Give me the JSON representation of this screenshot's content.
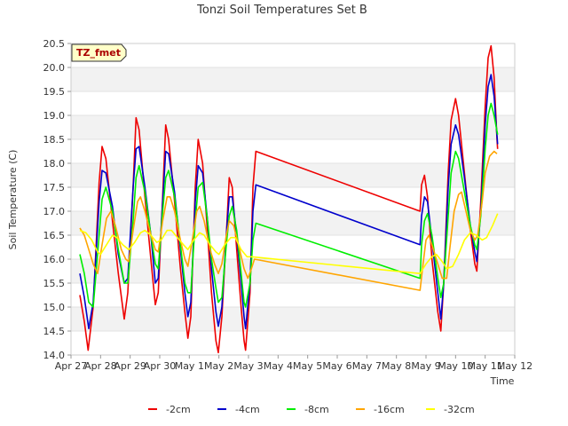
{
  "chart_data": {
    "type": "line",
    "title": "Tonzi Soil Temperatures Set B",
    "xlabel": "Time",
    "ylabel": "Soil Temperature (C)",
    "badge": "TZ_fmet",
    "x_ticks": [
      "Apr 27",
      "Apr 28",
      "Apr 29",
      "Apr 30",
      "May 1",
      "May 2",
      "May 3",
      "May 4",
      "May 5",
      "May 6",
      "May 7",
      "May 8",
      "May 9",
      "May 10",
      "May 11",
      "May 12"
    ],
    "xlim": [
      0,
      15
    ],
    "y_ticks": [
      "14.0",
      "14.5",
      "15.0",
      "15.5",
      "16.0",
      "16.5",
      "17.0",
      "17.5",
      "18.0",
      "18.5",
      "19.0",
      "19.5",
      "20.0",
      "20.5"
    ],
    "ylim": [
      14.0,
      20.5
    ],
    "grid": true,
    "legend_position": "bottom",
    "series": [
      {
        "name": "-2cm",
        "color": "#ee0000",
        "points": [
          [
            0.3,
            15.25
          ],
          [
            0.45,
            14.7
          ],
          [
            0.58,
            14.1
          ],
          [
            0.75,
            15.0
          ],
          [
            0.95,
            17.6
          ],
          [
            1.05,
            18.35
          ],
          [
            1.18,
            18.1
          ],
          [
            1.4,
            16.8
          ],
          [
            1.6,
            15.7
          ],
          [
            1.8,
            14.75
          ],
          [
            1.92,
            15.3
          ],
          [
            2.1,
            17.5
          ],
          [
            2.2,
            18.95
          ],
          [
            2.3,
            18.7
          ],
          [
            2.5,
            17.3
          ],
          [
            2.7,
            16.0
          ],
          [
            2.85,
            15.05
          ],
          [
            2.95,
            15.3
          ],
          [
            3.1,
            17.3
          ],
          [
            3.2,
            18.8
          ],
          [
            3.3,
            18.5
          ],
          [
            3.5,
            17.2
          ],
          [
            3.7,
            15.8
          ],
          [
            3.85,
            14.9
          ],
          [
            3.95,
            14.35
          ],
          [
            4.05,
            14.8
          ],
          [
            4.2,
            17.5
          ],
          [
            4.3,
            18.5
          ],
          [
            4.45,
            18.0
          ],
          [
            4.6,
            16.7
          ],
          [
            4.75,
            15.3
          ],
          [
            4.9,
            14.3
          ],
          [
            4.98,
            14.05
          ],
          [
            5.1,
            14.8
          ],
          [
            5.25,
            16.5
          ],
          [
            5.35,
            17.7
          ],
          [
            5.45,
            17.5
          ],
          [
            5.6,
            16.2
          ],
          [
            5.75,
            15.0
          ],
          [
            5.85,
            14.3
          ],
          [
            5.9,
            14.1
          ],
          [
            6.05,
            15.3
          ],
          [
            6.15,
            17.5
          ],
          [
            6.25,
            18.25
          ],
          [
            11.8,
            17.0
          ],
          [
            11.85,
            17.55
          ],
          [
            11.95,
            17.75
          ],
          [
            12.05,
            17.3
          ],
          [
            12.2,
            16.0
          ],
          [
            12.4,
            14.9
          ],
          [
            12.5,
            14.5
          ],
          [
            12.6,
            15.5
          ],
          [
            12.75,
            17.8
          ],
          [
            12.85,
            18.9
          ],
          [
            13.0,
            19.35
          ],
          [
            13.1,
            19.0
          ],
          [
            13.3,
            17.8
          ],
          [
            13.5,
            16.6
          ],
          [
            13.65,
            15.9
          ],
          [
            13.72,
            15.75
          ],
          [
            13.85,
            17.2
          ],
          [
            14.0,
            19.2
          ],
          [
            14.1,
            20.2
          ],
          [
            14.2,
            20.45
          ],
          [
            14.3,
            19.8
          ],
          [
            14.4,
            18.5
          ],
          [
            14.42,
            18.3
          ]
        ]
      },
      {
        "name": "-4cm",
        "color": "#0000cc",
        "points": [
          [
            0.3,
            15.7
          ],
          [
            0.45,
            15.2
          ],
          [
            0.6,
            14.55
          ],
          [
            0.75,
            15.1
          ],
          [
            0.95,
            17.2
          ],
          [
            1.05,
            17.85
          ],
          [
            1.18,
            17.8
          ],
          [
            1.4,
            17.1
          ],
          [
            1.6,
            16.1
          ],
          [
            1.8,
            15.5
          ],
          [
            1.92,
            15.6
          ],
          [
            2.1,
            17.5
          ],
          [
            2.2,
            18.3
          ],
          [
            2.3,
            18.35
          ],
          [
            2.5,
            17.5
          ],
          [
            2.7,
            16.5
          ],
          [
            2.85,
            15.5
          ],
          [
            2.95,
            15.6
          ],
          [
            3.1,
            17.2
          ],
          [
            3.2,
            18.25
          ],
          [
            3.3,
            18.2
          ],
          [
            3.5,
            17.4
          ],
          [
            3.7,
            16.2
          ],
          [
            3.85,
            15.3
          ],
          [
            3.95,
            14.8
          ],
          [
            4.05,
            15.1
          ],
          [
            4.2,
            17.2
          ],
          [
            4.3,
            17.95
          ],
          [
            4.45,
            17.8
          ],
          [
            4.6,
            16.9
          ],
          [
            4.75,
            15.8
          ],
          [
            4.9,
            14.9
          ],
          [
            4.98,
            14.6
          ],
          [
            5.1,
            15.0
          ],
          [
            5.25,
            16.5
          ],
          [
            5.35,
            17.3
          ],
          [
            5.45,
            17.3
          ],
          [
            5.6,
            16.5
          ],
          [
            5.75,
            15.5
          ],
          [
            5.85,
            14.8
          ],
          [
            5.9,
            14.55
          ],
          [
            6.05,
            15.5
          ],
          [
            6.15,
            17.0
          ],
          [
            6.25,
            17.55
          ],
          [
            11.8,
            16.3
          ],
          [
            11.85,
            16.9
          ],
          [
            11.95,
            17.3
          ],
          [
            12.05,
            17.2
          ],
          [
            12.2,
            16.4
          ],
          [
            12.4,
            15.3
          ],
          [
            12.5,
            14.75
          ],
          [
            12.6,
            15.5
          ],
          [
            12.75,
            17.5
          ],
          [
            12.85,
            18.4
          ],
          [
            13.0,
            18.8
          ],
          [
            13.1,
            18.6
          ],
          [
            13.3,
            17.7
          ],
          [
            13.5,
            16.7
          ],
          [
            13.65,
            16.15
          ],
          [
            13.72,
            15.95
          ],
          [
            13.85,
            17.0
          ],
          [
            14.0,
            18.8
          ],
          [
            14.1,
            19.6
          ],
          [
            14.2,
            19.85
          ],
          [
            14.3,
            19.4
          ],
          [
            14.42,
            18.4
          ]
        ]
      },
      {
        "name": "-8cm",
        "color": "#00ee00",
        "points": [
          [
            0.3,
            16.1
          ],
          [
            0.45,
            15.7
          ],
          [
            0.6,
            15.1
          ],
          [
            0.75,
            15.0
          ],
          [
            0.95,
            16.5
          ],
          [
            1.05,
            17.25
          ],
          [
            1.18,
            17.5
          ],
          [
            1.4,
            17.0
          ],
          [
            1.6,
            16.2
          ],
          [
            1.8,
            15.5
          ],
          [
            1.92,
            15.5
          ],
          [
            2.1,
            16.8
          ],
          [
            2.2,
            17.7
          ],
          [
            2.3,
            17.95
          ],
          [
            2.5,
            17.4
          ],
          [
            2.7,
            16.5
          ],
          [
            2.85,
            15.9
          ],
          [
            2.95,
            15.8
          ],
          [
            3.1,
            17.0
          ],
          [
            3.2,
            17.7
          ],
          [
            3.3,
            17.85
          ],
          [
            3.5,
            17.3
          ],
          [
            3.7,
            16.3
          ],
          [
            3.85,
            15.5
          ],
          [
            3.95,
            15.3
          ],
          [
            4.05,
            15.3
          ],
          [
            4.2,
            16.8
          ],
          [
            4.3,
            17.5
          ],
          [
            4.45,
            17.6
          ],
          [
            4.6,
            16.9
          ],
          [
            4.75,
            16.0
          ],
          [
            4.9,
            15.4
          ],
          [
            4.98,
            15.1
          ],
          [
            5.1,
            15.2
          ],
          [
            5.25,
            16.3
          ],
          [
            5.35,
            16.9
          ],
          [
            5.45,
            17.1
          ],
          [
            5.6,
            16.6
          ],
          [
            5.75,
            15.7
          ],
          [
            5.85,
            15.1
          ],
          [
            5.9,
            15.0
          ],
          [
            6.05,
            15.5
          ],
          [
            6.15,
            16.4
          ],
          [
            6.25,
            16.75
          ],
          [
            11.8,
            15.6
          ],
          [
            11.85,
            16.3
          ],
          [
            11.95,
            16.8
          ],
          [
            12.05,
            16.95
          ],
          [
            12.2,
            16.5
          ],
          [
            12.4,
            15.6
          ],
          [
            12.5,
            15.2
          ],
          [
            12.6,
            15.5
          ],
          [
            12.75,
            16.9
          ],
          [
            12.85,
            17.8
          ],
          [
            13.0,
            18.25
          ],
          [
            13.1,
            18.1
          ],
          [
            13.3,
            17.4
          ],
          [
            13.5,
            16.7
          ],
          [
            13.65,
            16.3
          ],
          [
            13.72,
            16.2
          ],
          [
            13.85,
            16.9
          ],
          [
            14.0,
            18.3
          ],
          [
            14.1,
            19.0
          ],
          [
            14.2,
            19.25
          ],
          [
            14.3,
            19.0
          ],
          [
            14.42,
            18.6
          ]
        ]
      },
      {
        "name": "-16cm",
        "color": "#ffa500",
        "points": [
          [
            0.3,
            16.65
          ],
          [
            0.45,
            16.5
          ],
          [
            0.6,
            16.2
          ],
          [
            0.75,
            15.9
          ],
          [
            0.9,
            15.7
          ],
          [
            1.05,
            16.3
          ],
          [
            1.2,
            16.85
          ],
          [
            1.35,
            17.0
          ],
          [
            1.5,
            16.7
          ],
          [
            1.7,
            16.2
          ],
          [
            1.85,
            16.0
          ],
          [
            1.95,
            15.95
          ],
          [
            2.1,
            16.6
          ],
          [
            2.25,
            17.2
          ],
          [
            2.35,
            17.3
          ],
          [
            2.5,
            17.0
          ],
          [
            2.7,
            16.5
          ],
          [
            2.85,
            16.2
          ],
          [
            2.95,
            16.15
          ],
          [
            3.1,
            16.8
          ],
          [
            3.25,
            17.3
          ],
          [
            3.35,
            17.3
          ],
          [
            3.5,
            17.0
          ],
          [
            3.7,
            16.4
          ],
          [
            3.85,
            16.0
          ],
          [
            3.95,
            15.85
          ],
          [
            4.1,
            16.4
          ],
          [
            4.25,
            17.0
          ],
          [
            4.35,
            17.1
          ],
          [
            4.5,
            16.8
          ],
          [
            4.7,
            16.2
          ],
          [
            4.85,
            15.9
          ],
          [
            4.98,
            15.7
          ],
          [
            5.1,
            15.9
          ],
          [
            5.25,
            16.5
          ],
          [
            5.35,
            16.8
          ],
          [
            5.5,
            16.7
          ],
          [
            5.7,
            16.2
          ],
          [
            5.85,
            15.8
          ],
          [
            5.98,
            15.6
          ],
          [
            6.1,
            15.8
          ],
          [
            6.2,
            16.0
          ],
          [
            11.8,
            15.35
          ],
          [
            11.9,
            15.9
          ],
          [
            12.0,
            16.4
          ],
          [
            12.1,
            16.5
          ],
          [
            12.25,
            16.2
          ],
          [
            12.4,
            15.9
          ],
          [
            12.55,
            15.6
          ],
          [
            12.7,
            15.6
          ],
          [
            12.8,
            16.2
          ],
          [
            12.95,
            17.0
          ],
          [
            13.1,
            17.35
          ],
          [
            13.2,
            17.4
          ],
          [
            13.35,
            17.0
          ],
          [
            13.5,
            16.6
          ],
          [
            13.65,
            16.4
          ],
          [
            13.75,
            16.5
          ],
          [
            13.9,
            17.2
          ],
          [
            14.0,
            17.8
          ],
          [
            14.15,
            18.15
          ],
          [
            14.3,
            18.25
          ],
          [
            14.4,
            18.2
          ]
        ]
      },
      {
        "name": "-32cm",
        "color": "#ffff00",
        "points": [
          [
            0.3,
            16.6
          ],
          [
            0.5,
            16.55
          ],
          [
            0.7,
            16.4
          ],
          [
            0.9,
            16.15
          ],
          [
            1.0,
            16.1
          ],
          [
            1.2,
            16.3
          ],
          [
            1.4,
            16.5
          ],
          [
            1.55,
            16.45
          ],
          [
            1.75,
            16.3
          ],
          [
            1.95,
            16.2
          ],
          [
            2.15,
            16.35
          ],
          [
            2.35,
            16.55
          ],
          [
            2.5,
            16.6
          ],
          [
            2.7,
            16.5
          ],
          [
            2.9,
            16.35
          ],
          [
            3.05,
            16.4
          ],
          [
            3.25,
            16.6
          ],
          [
            3.4,
            16.6
          ],
          [
            3.6,
            16.45
          ],
          [
            3.8,
            16.3
          ],
          [
            3.95,
            16.2
          ],
          [
            4.15,
            16.4
          ],
          [
            4.35,
            16.55
          ],
          [
            4.5,
            16.5
          ],
          [
            4.7,
            16.3
          ],
          [
            4.9,
            16.15
          ],
          [
            5.0,
            16.1
          ],
          [
            5.2,
            16.3
          ],
          [
            5.4,
            16.45
          ],
          [
            5.55,
            16.45
          ],
          [
            5.75,
            16.2
          ],
          [
            5.95,
            16.05
          ],
          [
            6.1,
            16.05
          ],
          [
            11.8,
            15.7
          ],
          [
            12.0,
            15.9
          ],
          [
            12.2,
            16.05
          ],
          [
            12.35,
            16.1
          ],
          [
            12.55,
            15.95
          ],
          [
            12.7,
            15.8
          ],
          [
            12.9,
            15.85
          ],
          [
            13.1,
            16.1
          ],
          [
            13.3,
            16.4
          ],
          [
            13.5,
            16.55
          ],
          [
            13.7,
            16.5
          ],
          [
            13.9,
            16.4
          ],
          [
            14.05,
            16.45
          ],
          [
            14.25,
            16.7
          ],
          [
            14.42,
            16.95
          ]
        ]
      }
    ]
  }
}
